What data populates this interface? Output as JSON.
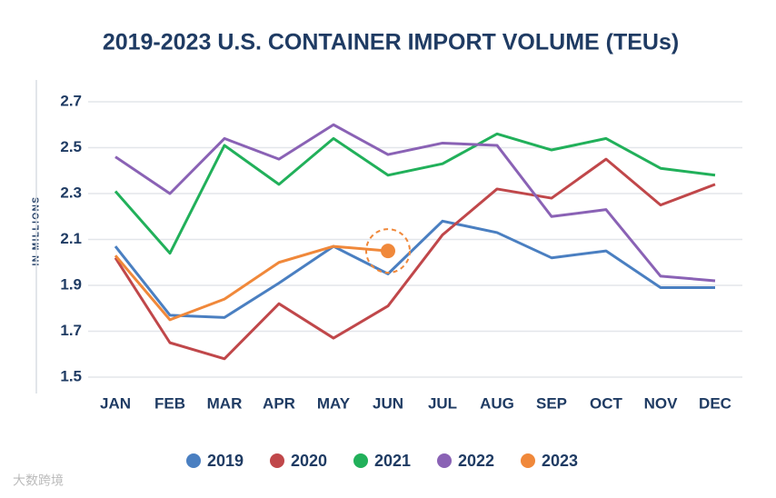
{
  "chart_data": {
    "type": "line",
    "title": "2019-2023 U.S. CONTAINER IMPORT VOLUME (TEUs)",
    "y_label": "IN MILLIONS",
    "categories": [
      "JAN",
      "FEB",
      "MAR",
      "APR",
      "MAY",
      "JUN",
      "JUL",
      "AUG",
      "SEP",
      "OCT",
      "NOV",
      "DEC"
    ],
    "series": [
      {
        "name": "2019",
        "color": "#4a7fc1",
        "values": [
          2.07,
          1.77,
          1.76,
          1.91,
          2.07,
          1.95,
          2.18,
          2.13,
          2.02,
          2.05,
          1.89,
          1.89
        ]
      },
      {
        "name": "2020",
        "color": "#c0474a",
        "values": [
          2.02,
          1.65,
          1.58,
          1.82,
          1.67,
          1.81,
          2.12,
          2.32,
          2.28,
          2.45,
          2.25,
          2.34
        ]
      },
      {
        "name": "2021",
        "color": "#21b05a",
        "values": [
          2.31,
          2.04,
          2.51,
          2.34,
          2.54,
          2.38,
          2.43,
          2.56,
          2.49,
          2.54,
          2.41,
          2.38
        ]
      },
      {
        "name": "2022",
        "color": "#8a62b5",
        "values": [
          2.46,
          2.3,
          2.54,
          2.45,
          2.6,
          2.47,
          2.52,
          2.51,
          2.2,
          2.23,
          1.94,
          1.92
        ]
      },
      {
        "name": "2023",
        "color": "#f0883a",
        "values": [
          2.03,
          1.75,
          1.84,
          2.0,
          2.07,
          2.05,
          null,
          null,
          null,
          null,
          null,
          null
        ]
      }
    ],
    "ylim": [
      1.5,
      2.7
    ],
    "yticks": [
      1.5,
      1.7,
      1.9,
      2.1,
      2.3,
      2.5,
      2.7
    ],
    "grid": true,
    "legend": "bottom"
  },
  "watermark": "大数跨境"
}
